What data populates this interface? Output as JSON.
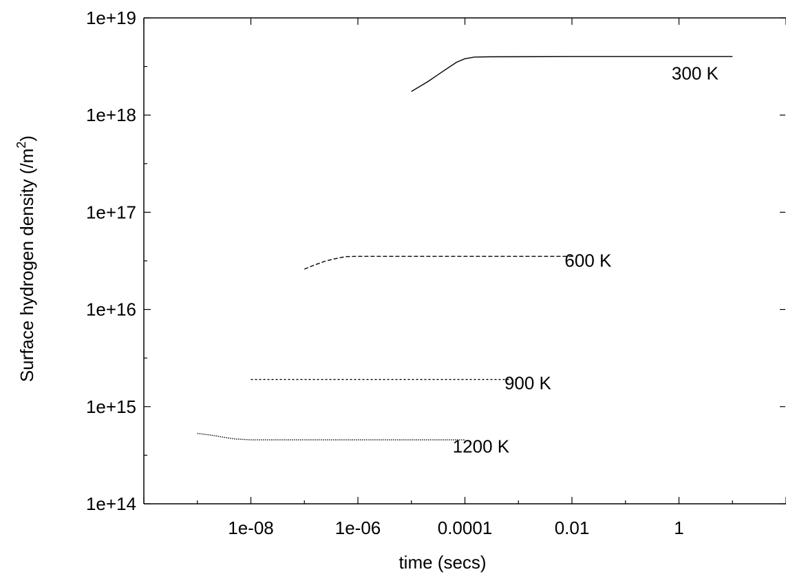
{
  "chart_data": {
    "type": "line",
    "title": "",
    "xlabel": "time (secs)",
    "ylabel": "Surface hydrogen density (/m^2)",
    "ylabel_parts": {
      "main": "Surface hydrogen density (/m",
      "sup": "2",
      "close": ")"
    },
    "x_scale": "log",
    "y_scale": "log",
    "xlim": [
      1e-10,
      100
    ],
    "ylim": [
      100000000000000.0,
      1e+19
    ],
    "x_ticks": [
      {
        "value": 1e-08,
        "label": "1e-08"
      },
      {
        "value": 1e-06,
        "label": "1e-06"
      },
      {
        "value": 0.0001,
        "label": "0.0001"
      },
      {
        "value": 0.01,
        "label": "0.01"
      },
      {
        "value": 1,
        "label": "1"
      }
    ],
    "y_ticks": [
      {
        "value": 100000000000000.0,
        "label": "1e+14"
      },
      {
        "value": 1000000000000000.0,
        "label": "1e+15"
      },
      {
        "value": 1e+16,
        "label": "1e+16"
      },
      {
        "value": 1e+17,
        "label": "1e+17"
      },
      {
        "value": 1e+18,
        "label": "1e+18"
      },
      {
        "value": 1e+19,
        "label": "1e+19"
      }
    ],
    "grid": false,
    "legend": "none",
    "series": [
      {
        "name": "300 K",
        "style": "solid",
        "color": "#000000",
        "points": [
          [
            1e-05,
            1.75e+18
          ],
          [
            2e-05,
            2.2e+18
          ],
          [
            4e-05,
            2.85e+18
          ],
          [
            7e-05,
            3.5e+18
          ],
          [
            0.0001,
            3.8e+18
          ],
          [
            0.00015,
            3.95e+18
          ],
          [
            0.0003,
            3.98e+18
          ],
          [
            0.01,
            4e+18
          ],
          [
            10,
            4e+18
          ]
        ]
      },
      {
        "name": "600 K",
        "style": "dashed",
        "color": "#000000",
        "points": [
          [
            1e-07,
            2.6e+16
          ],
          [
            1.5e-07,
            2.85e+16
          ],
          [
            2.5e-07,
            3.15e+16
          ],
          [
            4e-07,
            3.35e+16
          ],
          [
            6e-07,
            3.5e+16
          ],
          [
            1e-06,
            3.52e+16
          ],
          [
            0.0001,
            3.52e+16
          ],
          [
            0.01,
            3.52e+16
          ]
        ]
      },
      {
        "name": "900 K",
        "style": "dotted",
        "color": "#000000",
        "points": [
          [
            1e-08,
            1900000000000000.0
          ],
          [
            0.001,
            1900000000000000.0
          ]
        ]
      },
      {
        "name": "1200 K",
        "style": "fine-dotted",
        "color": "#000000",
        "points": [
          [
            1e-09,
            530000000000000.0
          ],
          [
            2e-09,
            505000000000000.0
          ],
          [
            3e-09,
            485000000000000.0
          ],
          [
            5e-09,
            465000000000000.0
          ],
          [
            1e-08,
            455000000000000.0
          ],
          [
            1e-06,
            455000000000000.0
          ],
          [
            0.0001,
            455000000000000.0
          ]
        ]
      }
    ],
    "annotations": [
      {
        "text": "300 K",
        "x": 2,
        "y": 2.7e+18
      },
      {
        "text": "600 K",
        "x": 0.02,
        "y": 3.2e+16
      },
      {
        "text": "900 K",
        "x": 0.0015,
        "y": 1750000000000000.0
      },
      {
        "text": "1200 K",
        "x": 0.0002,
        "y": 390000000000000.0
      }
    ]
  }
}
